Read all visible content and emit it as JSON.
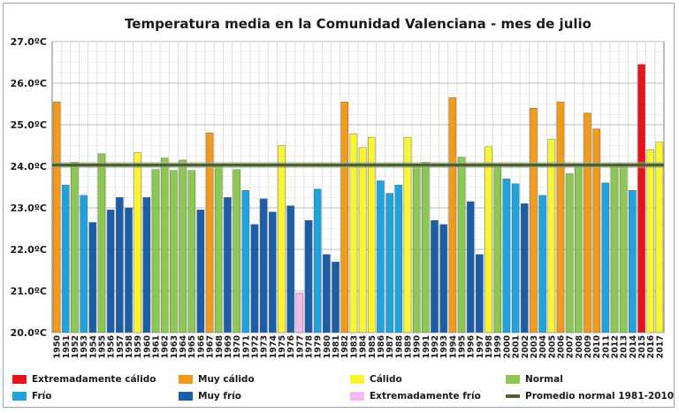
{
  "chart_data": {
    "type": "bar",
    "title": "Temperatura media en la Comunidad Valenciana - mes de julio",
    "xlabel": "",
    "ylabel": "",
    "ylim": [
      20,
      27
    ],
    "yticks": [
      "20.0ºC",
      "21.0ºC",
      "22.0ºC",
      "23.0ºC",
      "24.0ºC",
      "25.0ºC",
      "26.0ºC",
      "27.0ºC"
    ],
    "categories": [
      "1950",
      "1951",
      "1952",
      "1953",
      "1954",
      "1955",
      "1956",
      "1957",
      "1958",
      "1959",
      "1960",
      "1961",
      "1962",
      "1963",
      "1964",
      "1965",
      "1966",
      "1967",
      "1968",
      "1969",
      "1970",
      "1971",
      "1972",
      "1973",
      "1974",
      "1975",
      "1976",
      "1977",
      "1978",
      "1979",
      "1980",
      "1981",
      "1982",
      "1983",
      "1984",
      "1985",
      "1986",
      "1987",
      "1988",
      "1989",
      "1990",
      "1991",
      "1992",
      "1993",
      "1994",
      "1995",
      "1996",
      "1997",
      "1998",
      "1999",
      "2000",
      "2001",
      "2002",
      "2003",
      "2004",
      "2005",
      "2006",
      "2007",
      "2008",
      "2009",
      "2010",
      "2011",
      "2012",
      "2013",
      "2014",
      "2015",
      "2016",
      "2017"
    ],
    "values": [
      25.55,
      23.55,
      24.1,
      23.3,
      22.65,
      24.3,
      22.95,
      23.25,
      23.0,
      24.33,
      23.25,
      23.92,
      24.2,
      23.9,
      24.15,
      23.9,
      22.95,
      24.8,
      24.05,
      23.25,
      23.92,
      23.42,
      22.6,
      23.22,
      22.9,
      24.5,
      23.05,
      20.95,
      22.7,
      23.45,
      21.88,
      21.7,
      25.55,
      24.78,
      24.45,
      24.7,
      23.65,
      23.35,
      23.55,
      24.7,
      24.0,
      24.1,
      22.7,
      22.6,
      25.65,
      24.22,
      23.15,
      21.88,
      24.47,
      24.05,
      23.7,
      23.58,
      23.1,
      25.4,
      23.3,
      24.65,
      25.55,
      23.82,
      24.0,
      25.28,
      24.9,
      23.6,
      24.05,
      24.0,
      23.42,
      26.45,
      24.4,
      24.58
    ],
    "classes": [
      "mc",
      "f",
      "n",
      "f",
      "mf",
      "n",
      "mf",
      "mf",
      "mf",
      "c",
      "mf",
      "n",
      "n",
      "n",
      "n",
      "n",
      "mf",
      "mc",
      "n",
      "mf",
      "n",
      "f",
      "mf",
      "mf",
      "mf",
      "c",
      "mf",
      "ef",
      "mf",
      "f",
      "mf",
      "mf",
      "mc",
      "c",
      "c",
      "c",
      "f",
      "f",
      "f",
      "c",
      "n",
      "n",
      "mf",
      "mf",
      "mc",
      "n",
      "mf",
      "mf",
      "c",
      "n",
      "f",
      "f",
      "mf",
      "mc",
      "f",
      "c",
      "mc",
      "n",
      "n",
      "mc",
      "mc",
      "f",
      "n",
      "n",
      "f",
      "ec",
      "c",
      "c"
    ],
    "reference_line": {
      "label": "Promedio normal 1981-2010",
      "value": 24.03
    },
    "legend": [
      {
        "key": "ec",
        "label": "Extremadamente cálido",
        "color": "#e8141c"
      },
      {
        "key": "mc",
        "label": "Muy cálido",
        "color": "#f29a1a"
      },
      {
        "key": "c",
        "label": "Cálido",
        "color": "#f8f532"
      },
      {
        "key": "n",
        "label": "Normal",
        "color": "#8cc852"
      },
      {
        "key": "f",
        "label": "Frío",
        "color": "#1ea3dc"
      },
      {
        "key": "mf",
        "label": "Muy frío",
        "color": "#1a5ea8"
      },
      {
        "key": "ef",
        "label": "Extremadamente frío",
        "color": "#f4b8ee"
      },
      {
        "key": "avg",
        "label": "Promedio normal 1981-2010",
        "color": "#4b6130"
      }
    ]
  }
}
